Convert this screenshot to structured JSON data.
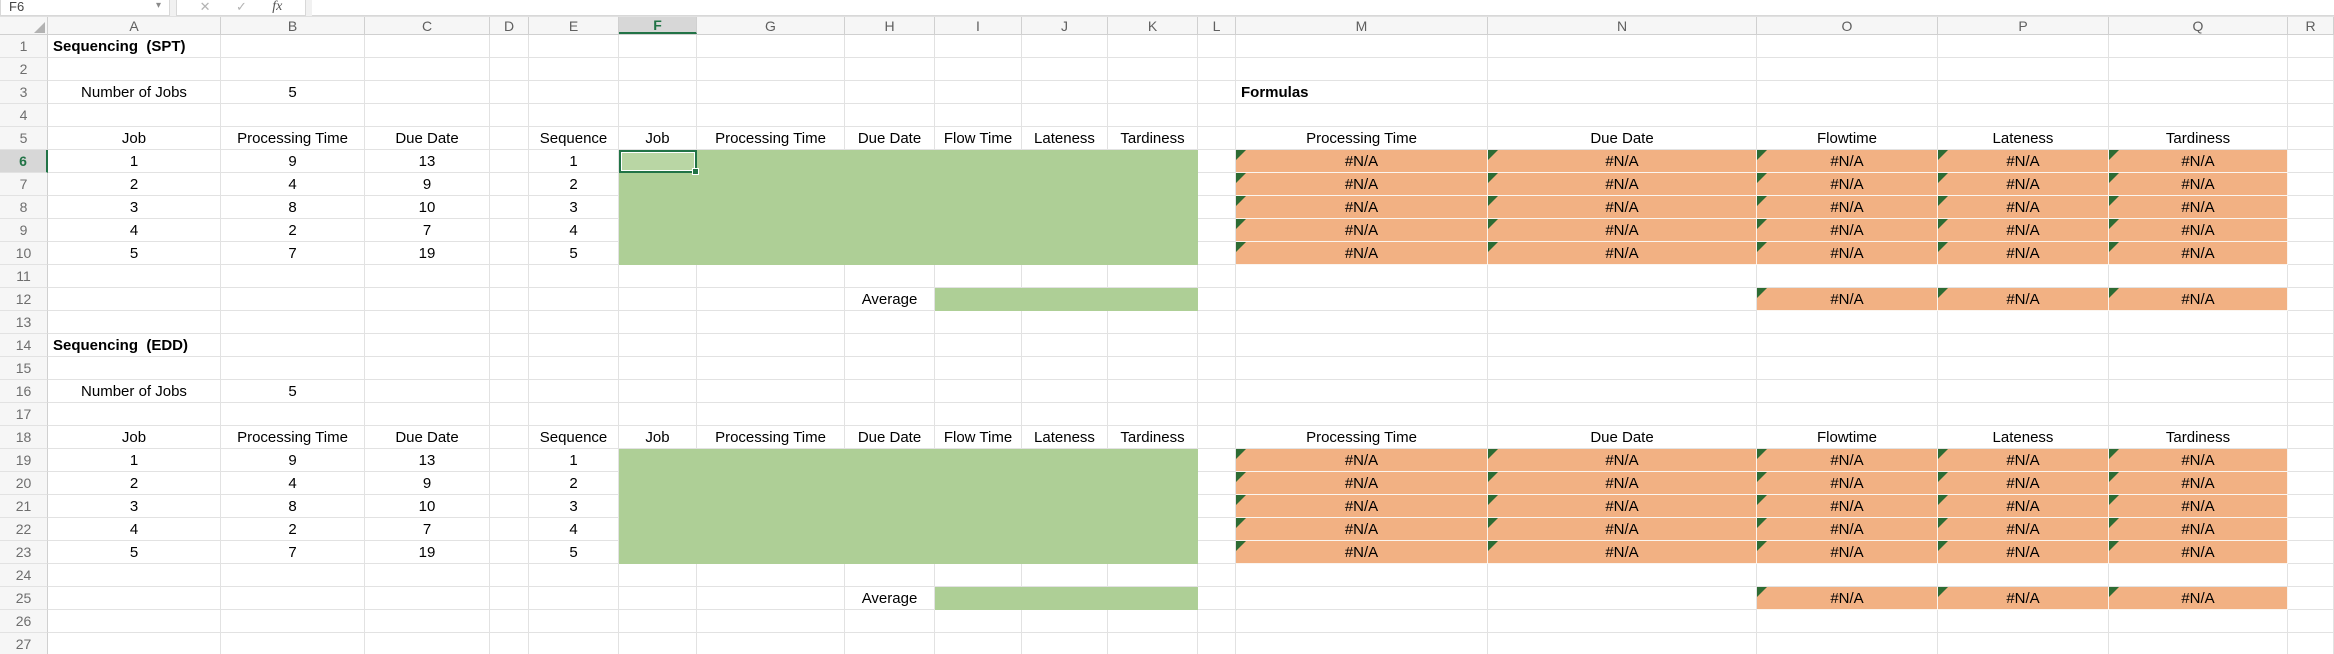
{
  "formula_bar": {
    "name_box": "F6",
    "cancel_icon": "✕",
    "confirm_icon": "✓",
    "fx_label": "fx",
    "formula_value": ""
  },
  "grid": {
    "column_letters": [
      "A",
      "B",
      "C",
      "D",
      "E",
      "F",
      "G",
      "H",
      "I",
      "J",
      "K",
      "L",
      "M",
      "N",
      "O",
      "P",
      "Q",
      "R"
    ],
    "row_numbers": [
      "1",
      "2",
      "3",
      "4",
      "5",
      "6",
      "7",
      "8",
      "9",
      "10",
      "11",
      "12",
      "13",
      "14",
      "15",
      "16",
      "17",
      "18",
      "19",
      "20",
      "21",
      "22",
      "23",
      "24",
      "25",
      "26",
      "27"
    ],
    "selected_cell": "F6",
    "selected_column": "F",
    "selected_row": "6"
  },
  "labels": {
    "formulas": "Formulas",
    "average": "Average",
    "number_of_jobs": "Number of Jobs",
    "na": "#N/A"
  },
  "colors": {
    "input_region_fill": "#aecf96",
    "formula_region_fill": "#f2b183",
    "error_indicator": "#2d6b33",
    "selection_accent": "#217346"
  },
  "sections": [
    {
      "title": "Sequencing  (SPT)",
      "number_of_jobs_value": "5",
      "input_headers": [
        "Job",
        "Processing Time",
        "Due Date"
      ],
      "sequence_header": "Sequence",
      "work_headers": [
        "Job",
        "Processing Time",
        "Due Date",
        "Flow Time",
        "Lateness",
        "Tardiness"
      ],
      "formula_headers": [
        "Processing Time",
        "Due Date",
        "Flowtime",
        "Lateness",
        "Tardiness"
      ],
      "rows": [
        {
          "job": "1",
          "processing_time": "9",
          "due_date": "13",
          "sequence": "1"
        },
        {
          "job": "2",
          "processing_time": "4",
          "due_date": "9",
          "sequence": "2"
        },
        {
          "job": "3",
          "processing_time": "8",
          "due_date": "10",
          "sequence": "3"
        },
        {
          "job": "4",
          "processing_time": "2",
          "due_date": "7",
          "sequence": "4"
        },
        {
          "job": "5",
          "processing_time": "7",
          "due_date": "19",
          "sequence": "5"
        }
      ]
    },
    {
      "title": "Sequencing  (EDD)",
      "number_of_jobs_value": "5",
      "input_headers": [
        "Job",
        "Processing Time",
        "Due Date"
      ],
      "sequence_header": "Sequence",
      "work_headers": [
        "Job",
        "Processing Time",
        "Due Date",
        "Flow Time",
        "Lateness",
        "Tardiness"
      ],
      "formula_headers": [
        "Processing Time",
        "Due Date",
        "Flowtime",
        "Lateness",
        "Tardiness"
      ],
      "rows": [
        {
          "job": "1",
          "processing_time": "9",
          "due_date": "13",
          "sequence": "1"
        },
        {
          "job": "2",
          "processing_time": "4",
          "due_date": "9",
          "sequence": "2"
        },
        {
          "job": "3",
          "processing_time": "8",
          "due_date": "10",
          "sequence": "3"
        },
        {
          "job": "4",
          "processing_time": "2",
          "due_date": "7",
          "sequence": "4"
        },
        {
          "job": "5",
          "processing_time": "7",
          "due_date": "19",
          "sequence": "5"
        }
      ]
    }
  ]
}
